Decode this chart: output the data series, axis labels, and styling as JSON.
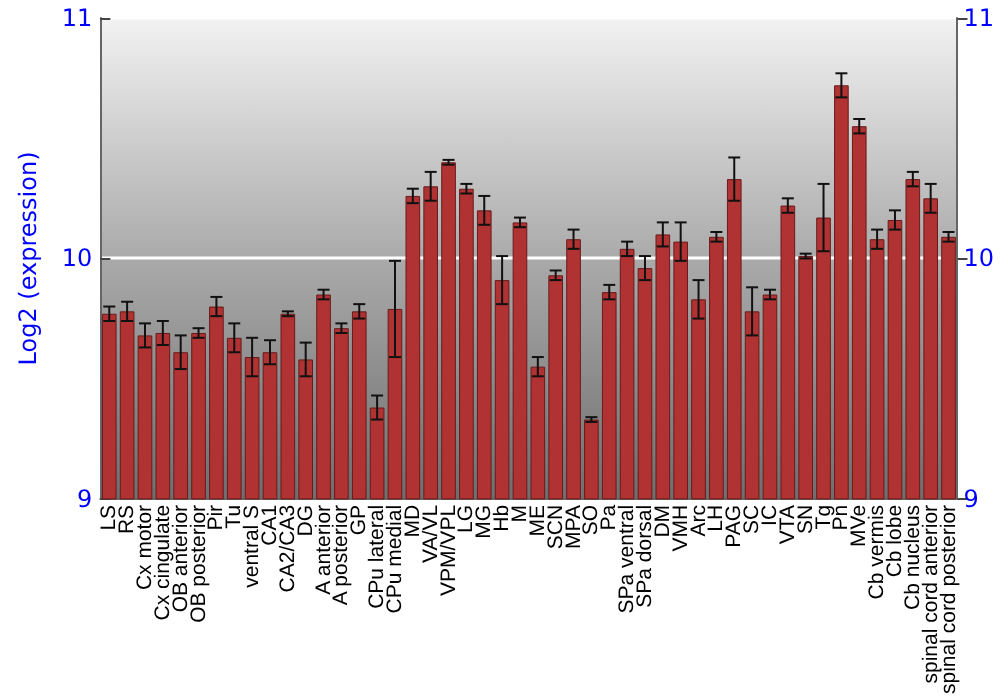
{
  "chart_data": {
    "type": "bar",
    "ylabel": "Log2 (expression)",
    "categories": [
      "LS",
      "RS",
      "Cx motor",
      "Cx cingulate",
      "OB anterior",
      "OB posterior",
      "Pir",
      "Tu",
      "ventral S",
      "CA1",
      "CA2/CA3",
      "DG",
      "A anterior",
      "A posterior",
      "GP",
      "CPu lateral",
      "CPu medial",
      "MD",
      "VA/VL",
      "VPM/VPL",
      "LG",
      "MG",
      "Hb",
      "M",
      "ME",
      "SCN",
      "MPA",
      "SO",
      "Pa",
      "SPa ventral",
      "SPa dorsal",
      "DM",
      "VMH",
      "Arc",
      "LH",
      "PAG",
      "SC",
      "IC",
      "VTA",
      "SN",
      "Tg",
      "Pn",
      "MVe",
      "Cb vermis",
      "Cb lobe",
      "Cb nucleus",
      "spinal cord anterior",
      "spinal cord posterior"
    ],
    "values": [
      9.77,
      9.78,
      9.68,
      9.69,
      9.61,
      9.69,
      9.8,
      9.67,
      9.59,
      9.61,
      9.77,
      9.58,
      9.85,
      9.71,
      9.78,
      9.38,
      9.79,
      10.26,
      10.3,
      10.4,
      10.29,
      10.2,
      9.91,
      10.15,
      9.55,
      9.93,
      10.08,
      9.33,
      9.86,
      10.04,
      9.96,
      10.1,
      10.07,
      9.83,
      10.09,
      10.33,
      9.78,
      9.85,
      10.22,
      10.01,
      10.17,
      10.72,
      10.55,
      10.08,
      10.16,
      10.33,
      10.25,
      10.09
    ],
    "errors": [
      0.03,
      0.04,
      0.05,
      0.05,
      0.07,
      0.02,
      0.04,
      0.06,
      0.08,
      0.05,
      0.01,
      0.07,
      0.02,
      0.02,
      0.03,
      0.05,
      0.2,
      0.03,
      0.06,
      0.01,
      0.02,
      0.06,
      0.1,
      0.02,
      0.04,
      0.02,
      0.04,
      0.01,
      0.03,
      0.03,
      0.05,
      0.05,
      0.08,
      0.08,
      0.02,
      0.09,
      0.1,
      0.02,
      0.03,
      0.01,
      0.14,
      0.05,
      0.03,
      0.04,
      0.04,
      0.03,
      0.06,
      0.02
    ],
    "color": "#b03232",
    "ylim": [
      9,
      11
    ],
    "yticks": [
      9,
      10,
      11
    ],
    "y2lim": [
      9,
      11
    ],
    "y2ticks": [
      9,
      10,
      11
    ],
    "grid": "y"
  }
}
